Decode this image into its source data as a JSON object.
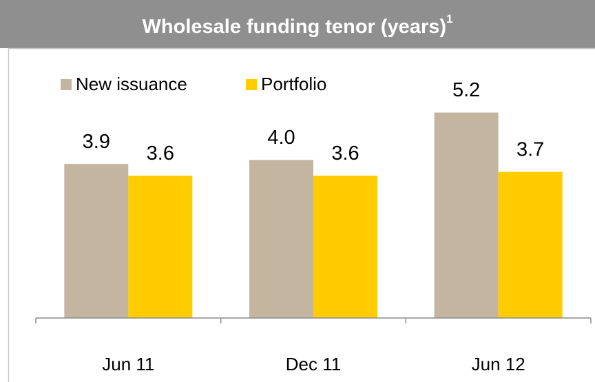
{
  "chart_data": {
    "type": "bar",
    "title": "Wholesale funding tenor (years)",
    "title_footnote": "1",
    "categories": [
      "Jun 11",
      "Dec 11",
      "Jun 12"
    ],
    "series": [
      {
        "name": "New issuance",
        "color": "#c4b5a0",
        "values": [
          3.9,
          4.0,
          5.2
        ],
        "value_labels": [
          "3.9",
          "4.0",
          "5.2"
        ]
      },
      {
        "name": "Portfolio",
        "color": "#ffcc00",
        "values": [
          3.6,
          3.6,
          3.7
        ],
        "value_labels": [
          "3.6",
          "3.6",
          "3.7"
        ]
      }
    ],
    "legend": "top-left"
  }
}
